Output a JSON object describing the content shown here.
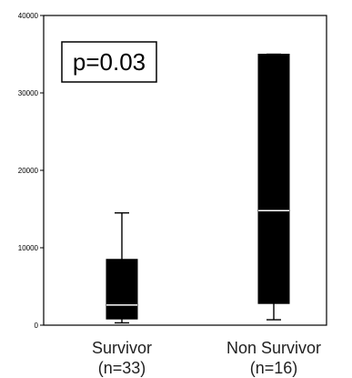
{
  "chart_data": {
    "type": "box",
    "title": "",
    "xlabel": "",
    "ylabel": "",
    "ylim": [
      0,
      40000
    ],
    "yticks": [
      0,
      10000,
      20000,
      30000,
      40000
    ],
    "ytick_labels": [
      "0",
      "10000",
      "20000",
      "30000",
      "40000"
    ],
    "grid": false,
    "legend": "none",
    "annotation": "p=0.03",
    "categories": [
      {
        "label_line1": "Survivor",
        "label_line2": "(n=33)"
      },
      {
        "label_line1": "Non Survivor",
        "label_line2": "(n=16)"
      }
    ],
    "boxes": [
      {
        "whisker_low": 300,
        "q1": 800,
        "median": 2600,
        "q3": 8500,
        "whisker_high": 14500
      },
      {
        "whisker_low": 700,
        "q1": 2800,
        "median": 14800,
        "q3": 35000,
        "whisker_high": 35000
      }
    ],
    "colors": {
      "box_fill": "#000000",
      "median_line": "#ffffff",
      "axis": "#000000"
    }
  }
}
